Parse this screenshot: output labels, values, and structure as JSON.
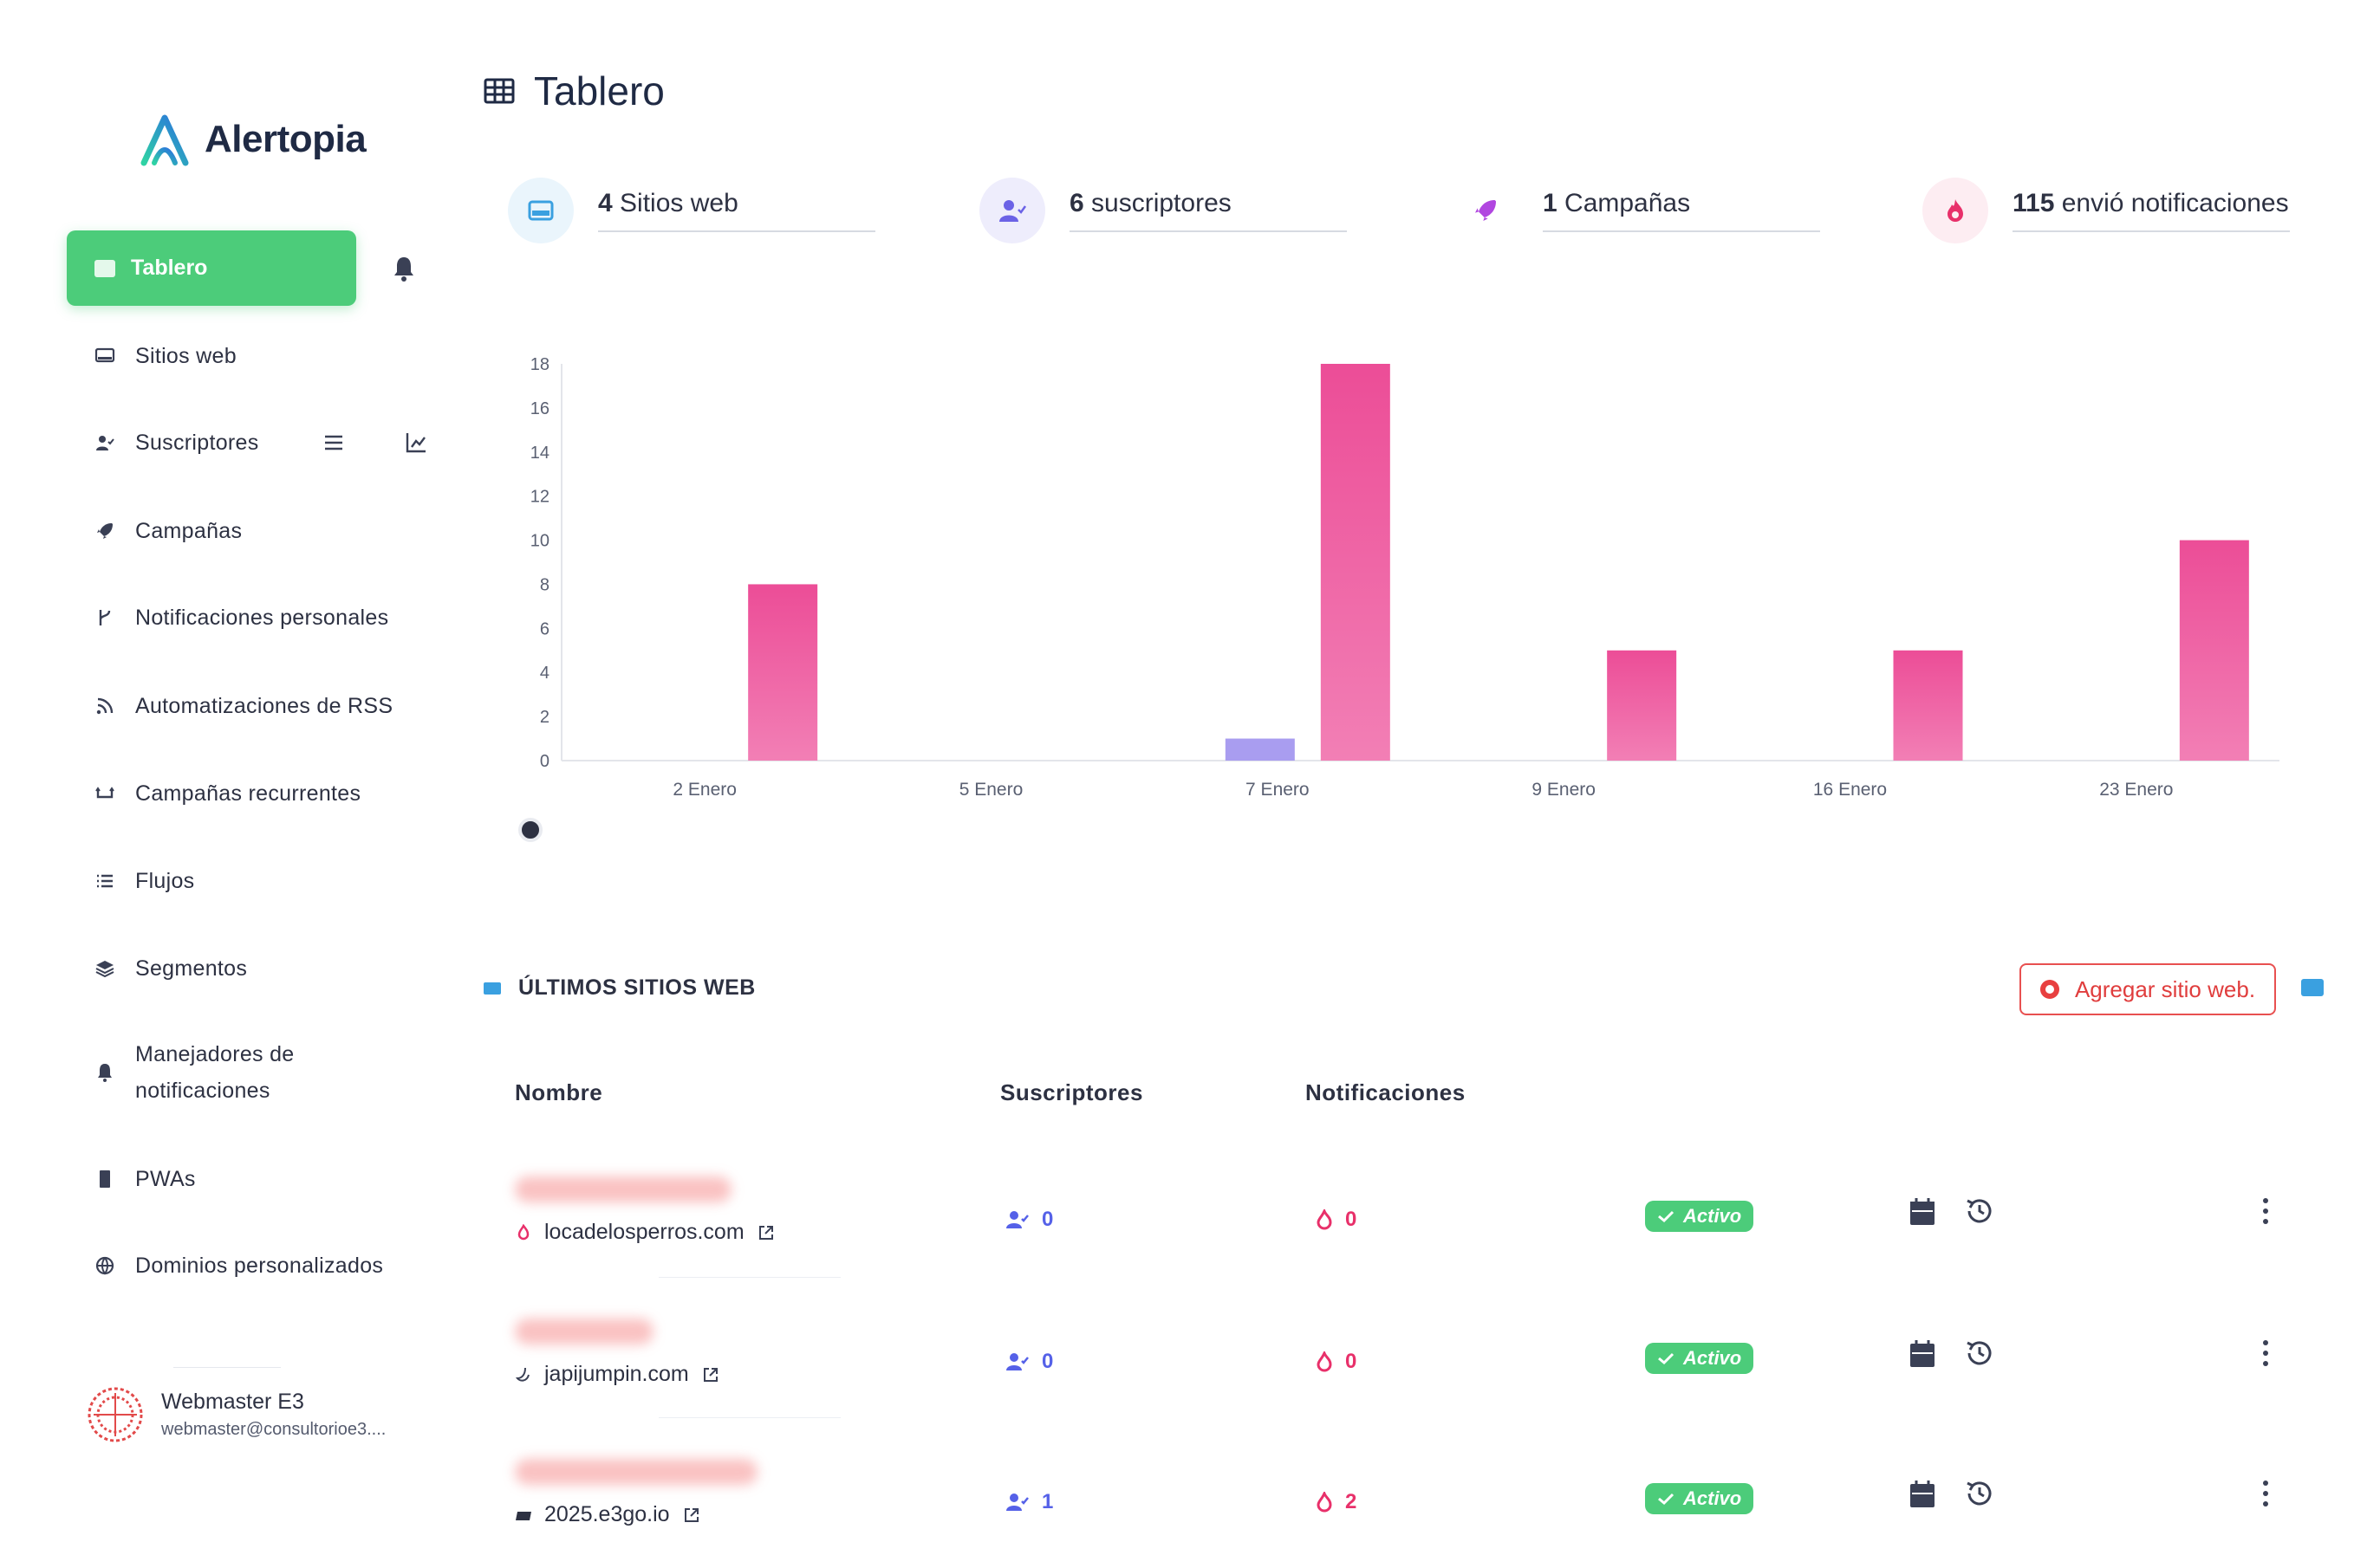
{
  "brand": {
    "name": "Alertopia",
    "accent": "#4ccc7a"
  },
  "sidebar": {
    "active": {
      "label": "Tablero",
      "icon": "dashboard-icon"
    },
    "items": [
      {
        "label": "Sitios web",
        "icon": "monitor-icon"
      },
      {
        "label": "Suscriptores",
        "icon": "user-check-icon"
      },
      {
        "label": "Campañas",
        "icon": "rocket-icon"
      },
      {
        "label": "Notificaciones personales",
        "icon": "branch-icon"
      },
      {
        "label": "Automatizaciones de RSS",
        "icon": "rss-icon"
      },
      {
        "label": "Campañas recurrentes",
        "icon": "repeat-icon"
      },
      {
        "label": "Flujos",
        "icon": "list-icon"
      },
      {
        "label": "Segmentos",
        "icon": "layers-icon"
      },
      {
        "label": "Manejadores de notificaciones",
        "icon": "bell-icon"
      },
      {
        "label": "PWAs",
        "icon": "phone-icon"
      },
      {
        "label": "Dominios personalizados",
        "icon": "globe-icon"
      }
    ],
    "user": {
      "name": "Webmaster E3",
      "email": "webmaster@consultorioe3...."
    }
  },
  "header": {
    "title": "Tablero"
  },
  "stats": [
    {
      "value": "4",
      "label": "Sitios web",
      "icon": "monitor-icon",
      "color": "#3aa0e0"
    },
    {
      "value": "6",
      "label": "suscriptores",
      "icon": "user-check-icon",
      "color": "#6b62e6"
    },
    {
      "value": "1",
      "label": "Campañas",
      "icon": "rocket-icon",
      "color": "#b146e0"
    },
    {
      "value": "115",
      "label": "envió notificaciones",
      "icon": "fire-icon",
      "color": "#e8306a"
    }
  ],
  "chart_data": {
    "type": "bar",
    "title": "",
    "xlabel": "",
    "ylabel": "",
    "ylim": [
      0,
      18
    ],
    "yticks": [
      0,
      2,
      4,
      6,
      8,
      10,
      12,
      14,
      16,
      18
    ],
    "x_labels": [
      "2 Enero",
      "5 Enero",
      "7 Enero",
      "9 Enero",
      "16 Enero",
      "23 Enero"
    ],
    "series": [
      {
        "color": "#a99df0",
        "values": [
          0,
          0,
          1,
          0,
          0,
          0
        ]
      },
      {
        "color": "#ee5aa0",
        "values": [
          8,
          0,
          18,
          5,
          5,
          10
        ]
      }
    ]
  },
  "latest": {
    "title": "ÚLTIMOS SITIOS WEB",
    "add_label": "Agregar sitio web.",
    "columns": {
      "name": "Nombre",
      "subscribers": "Suscriptores",
      "notifications": "Notificaciones"
    },
    "rows": [
      {
        "domain": "locadelosperros.com",
        "subscribers": "0",
        "notifications": "0",
        "status": "Activo"
      },
      {
        "domain": "japijumpin.com",
        "subscribers": "0",
        "notifications": "0",
        "status": "Activo"
      },
      {
        "domain": "2025.e3go.io",
        "subscribers": "1",
        "notifications": "2",
        "status": "Activo"
      }
    ]
  }
}
